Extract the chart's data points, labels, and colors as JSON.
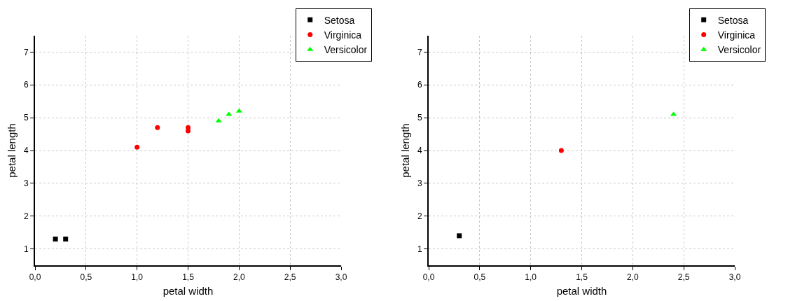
{
  "chart_data": [
    {
      "type": "scatter",
      "xlabel": "petal width",
      "ylabel": "petal length",
      "xlim": [
        0,
        3
      ],
      "ylim": [
        0.5,
        7.5
      ],
      "xticks": [
        {
          "value": 0,
          "label": "0,0"
        },
        {
          "value": 0.5,
          "label": "0,5"
        },
        {
          "value": 1,
          "label": "1,0"
        },
        {
          "value": 1.5,
          "label": "1,5"
        },
        {
          "value": 2,
          "label": "2,0"
        },
        {
          "value": 2.5,
          "label": "2,5"
        },
        {
          "value": 3,
          "label": "3,0"
        }
      ],
      "yticks": [
        1,
        2,
        3,
        4,
        5,
        6,
        7
      ],
      "grid": true,
      "legend": "top right",
      "series": [
        {
          "name": "Setosa",
          "color": "#000000",
          "marker": "square",
          "x": [
            0.2,
            0.3
          ],
          "values": [
            1.3,
            1.3
          ]
        },
        {
          "name": "Virginica",
          "color": "#ff0000",
          "marker": "circle",
          "x": [
            1.0,
            1.2,
            1.5,
            1.5
          ],
          "values": [
            4.1,
            4.7,
            4.7,
            4.6
          ]
        },
        {
          "name": "Versicolor",
          "color": "#00ff00",
          "marker": "triangle",
          "x": [
            1.8,
            1.9,
            2.0
          ],
          "values": [
            4.9,
            5.1,
            5.2
          ]
        }
      ]
    },
    {
      "type": "scatter",
      "xlabel": "petal width",
      "ylabel": "petal length",
      "xlim": [
        0,
        3
      ],
      "ylim": [
        0.5,
        7.5
      ],
      "xticks": [
        {
          "value": 0,
          "label": "0,0"
        },
        {
          "value": 0.5,
          "label": "0,5"
        },
        {
          "value": 1,
          "label": "1,0"
        },
        {
          "value": 1.5,
          "label": "1,5"
        },
        {
          "value": 2,
          "label": "2,0"
        },
        {
          "value": 2.5,
          "label": "2,5"
        },
        {
          "value": 3,
          "label": "3,0"
        }
      ],
      "yticks": [
        1,
        2,
        3,
        4,
        5,
        6,
        7
      ],
      "grid": true,
      "legend": "top right",
      "series": [
        {
          "name": "Setosa",
          "color": "#000000",
          "marker": "square",
          "x": [
            0.3
          ],
          "values": [
            1.4
          ]
        },
        {
          "name": "Virginica",
          "color": "#ff0000",
          "marker": "circle",
          "x": [
            1.3
          ],
          "values": [
            4.0
          ]
        },
        {
          "name": "Versicolor",
          "color": "#00ff00",
          "marker": "triangle",
          "x": [
            2.4
          ],
          "values": [
            5.1
          ]
        }
      ]
    }
  ]
}
